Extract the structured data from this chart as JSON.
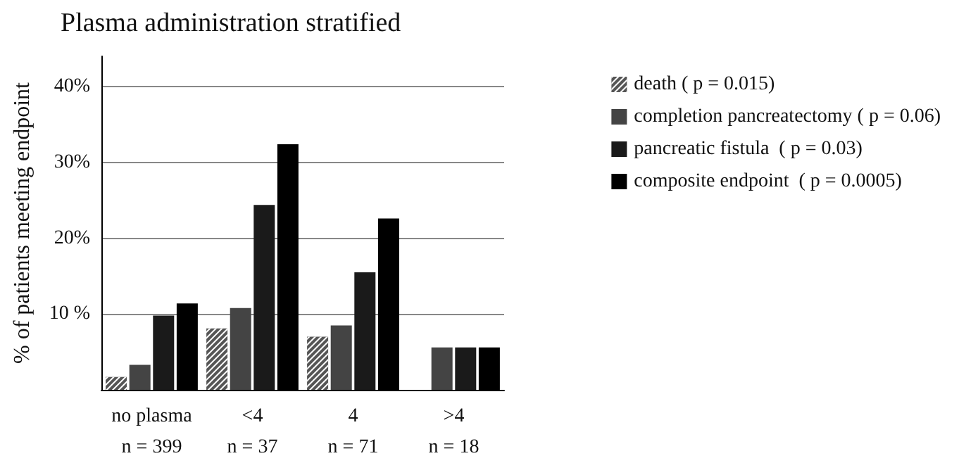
{
  "chart_data": {
    "type": "bar",
    "title": "Plasma administration stratified",
    "ylabel": "% of patients meeting endpoint",
    "categories": [
      "no plasma\nn = 399",
      "<4\nn = 37",
      "4\nn = 71",
      ">4\nn = 18"
    ],
    "series": [
      {
        "name": "death ( p = 0.015)",
        "color": "#555555",
        "values": [
          1.7,
          8.1,
          7.0,
          0
        ]
      },
      {
        "name": "completion pancreatectomy ( p = 0.06)",
        "color": "#444444",
        "values": [
          3.3,
          10.8,
          8.5,
          5.6
        ]
      },
      {
        "name": "pancreatic fistula  ( p = 0.03)",
        "color": "#1a1a1a",
        "values": [
          9.8,
          24.4,
          15.5,
          5.6
        ]
      },
      {
        "name": "composite endpoint  ( p = 0.0005)",
        "color": "#000000",
        "values": [
          11.4,
          32.4,
          22.6,
          5.6
        ]
      }
    ],
    "ylim": [
      0,
      44
    ],
    "yticks": [
      {
        "value": 10,
        "label": "10 %"
      },
      {
        "value": 20,
        "label": "20%"
      },
      {
        "value": 30,
        "label": "30%"
      },
      {
        "value": 40,
        "label": "40%"
      }
    ],
    "grid": "y",
    "legend": "right"
  }
}
